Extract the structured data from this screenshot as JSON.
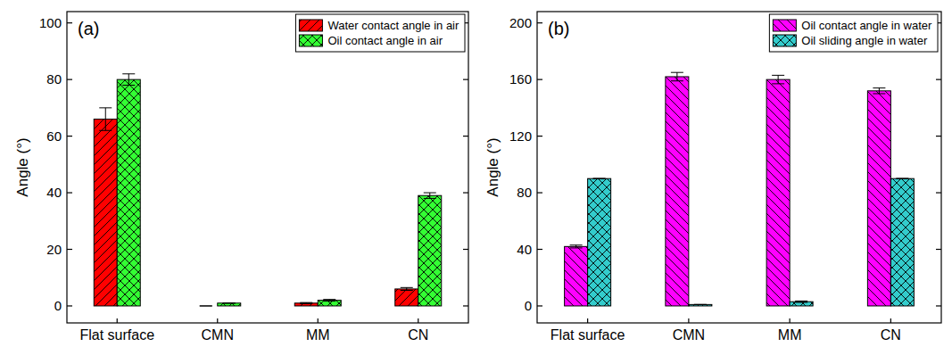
{
  "chart_data": [
    {
      "type": "bar",
      "panel": "(a)",
      "y_label": "Angle (°)",
      "categories": [
        "Flat surface",
        "CMN",
        "MM",
        "CN"
      ],
      "ylim": [
        -6,
        104
      ],
      "yticks": [
        0,
        20,
        40,
        60,
        80,
        100
      ],
      "legend": "upper right",
      "series": [
        {
          "name": "Water contact angle in air",
          "color": "#ff0000",
          "values": [
            66,
            0,
            1,
            6
          ],
          "errors": [
            4,
            0,
            0.2,
            0.5
          ]
        },
        {
          "name": "Oil contact angle in air",
          "color": "#33ff33",
          "values": [
            80,
            1,
            2,
            39
          ],
          "errors": [
            2,
            0,
            0.3,
            1
          ]
        }
      ]
    },
    {
      "type": "bar",
      "panel": "(b)",
      "y_label": "Angle (°)",
      "categories": [
        "Flat surface",
        "CMN",
        "MM",
        "CN"
      ],
      "ylim": [
        -12,
        208
      ],
      "yticks": [
        0,
        40,
        80,
        120,
        160,
        200
      ],
      "legend": "upper right",
      "series": [
        {
          "name": "Oil contact angle in water",
          "color": "#ff00ff",
          "values": [
            42,
            162,
            160,
            152
          ],
          "errors": [
            1,
            3,
            3,
            2
          ]
        },
        {
          "name": "Oil sliding angle in water",
          "color": "#33cccc",
          "values": [
            90,
            1,
            3,
            90
          ],
          "errors": [
            0,
            0,
            0.5,
            0
          ]
        }
      ]
    }
  ]
}
